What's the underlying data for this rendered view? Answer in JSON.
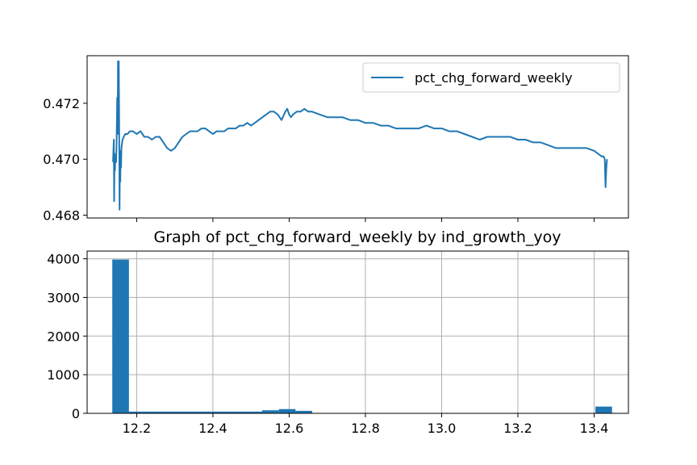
{
  "colors": {
    "series": "#1f77b4",
    "grid": "#b0b0b0",
    "axis": "#000000",
    "legend_border": "#cccccc",
    "background": "#ffffff"
  },
  "chart_data": [
    {
      "type": "line",
      "title": "",
      "xlabel": "",
      "ylabel": "",
      "legend": {
        "placement": "upper-right",
        "entries": [
          "pct_chg_forward_weekly"
        ]
      },
      "grid": false,
      "ylim": [
        0.4679,
        0.4737
      ],
      "xlim": [
        12.07,
        13.49
      ],
      "x_tick_values": [
        12.2,
        12.4,
        12.6,
        12.8,
        13.0,
        13.2,
        13.4
      ],
      "x_tick_labels": [
        "",
        "",
        "",
        "",
        "",
        "",
        ""
      ],
      "y_ticks": [
        0.468,
        0.47,
        0.472
      ],
      "y_tick_labels": [
        "0.468",
        "0.470",
        "0.472"
      ],
      "series": [
        {
          "name": "pct_chg_forward_weekly",
          "x": [
            12.138,
            12.14,
            12.141,
            12.142,
            12.143,
            12.144,
            12.146,
            12.147,
            12.149,
            12.15,
            12.151,
            12.152,
            12.153,
            12.154,
            12.155,
            12.156,
            12.157,
            12.158,
            12.159,
            12.16,
            12.163,
            12.166,
            12.17,
            12.176,
            12.182,
            12.19,
            12.2,
            12.21,
            12.22,
            12.23,
            12.24,
            12.25,
            12.26,
            12.27,
            12.28,
            12.29,
            12.3,
            12.31,
            12.32,
            12.33,
            12.34,
            12.35,
            12.36,
            12.37,
            12.38,
            12.39,
            12.4,
            12.41,
            12.42,
            12.43,
            12.44,
            12.45,
            12.46,
            12.47,
            12.48,
            12.49,
            12.5,
            12.51,
            12.52,
            12.53,
            12.54,
            12.55,
            12.56,
            12.57,
            12.58,
            12.59,
            12.595,
            12.6,
            12.605,
            12.61,
            12.62,
            12.63,
            12.64,
            12.65,
            12.66,
            12.68,
            12.7,
            12.72,
            12.74,
            12.76,
            12.78,
            12.8,
            12.82,
            12.84,
            12.86,
            12.88,
            12.9,
            12.92,
            12.94,
            12.96,
            12.98,
            13.0,
            13.02,
            13.04,
            13.06,
            13.08,
            13.1,
            13.12,
            13.14,
            13.16,
            13.18,
            13.2,
            13.22,
            13.24,
            13.26,
            13.28,
            13.3,
            13.32,
            13.34,
            13.36,
            13.38,
            13.4,
            13.41,
            13.42,
            13.425,
            13.428,
            13.43,
            13.432,
            13.434
          ],
          "values": [
            0.4699,
            0.4707,
            0.4685,
            0.4702,
            0.4696,
            0.4701,
            0.4699,
            0.4704,
            0.4722,
            0.4709,
            0.4735,
            0.4728,
            0.4735,
            0.4714,
            0.4682,
            0.4698,
            0.4692,
            0.4703,
            0.4697,
            0.4704,
            0.4707,
            0.4708,
            0.4709,
            0.4709,
            0.471,
            0.471,
            0.4709,
            0.471,
            0.4708,
            0.4708,
            0.4707,
            0.4708,
            0.4708,
            0.4706,
            0.4704,
            0.4703,
            0.4704,
            0.4706,
            0.4708,
            0.4709,
            0.471,
            0.471,
            0.471,
            0.4711,
            0.4711,
            0.471,
            0.4709,
            0.471,
            0.471,
            0.471,
            0.4711,
            0.4711,
            0.4711,
            0.4712,
            0.4712,
            0.4713,
            0.4712,
            0.4713,
            0.4714,
            0.4715,
            0.4716,
            0.4717,
            0.4717,
            0.4716,
            0.4714,
            0.4717,
            0.4718,
            0.4716,
            0.4715,
            0.4716,
            0.4717,
            0.4717,
            0.4718,
            0.4717,
            0.4717,
            0.4716,
            0.4715,
            0.4715,
            0.4715,
            0.4714,
            0.4714,
            0.4713,
            0.4713,
            0.4712,
            0.4712,
            0.4711,
            0.4711,
            0.4711,
            0.4711,
            0.4712,
            0.4711,
            0.4711,
            0.471,
            0.471,
            0.4709,
            0.4708,
            0.4707,
            0.4708,
            0.4708,
            0.4708,
            0.4708,
            0.4707,
            0.4707,
            0.4706,
            0.4706,
            0.4705,
            0.4704,
            0.4704,
            0.4704,
            0.4704,
            0.4704,
            0.4703,
            0.4702,
            0.4701,
            0.4701,
            0.47,
            0.469,
            0.4697,
            0.47
          ]
        }
      ]
    },
    {
      "type": "bar",
      "title": "Graph of pct_chg_forward_weekly by ind_growth_yoy",
      "xlabel": "",
      "ylabel": "",
      "grid": true,
      "xlim": [
        12.07,
        13.49
      ],
      "ylim": [
        0,
        4200
      ],
      "x_tick_values": [
        12.2,
        12.4,
        12.6,
        12.8,
        13.0,
        13.2,
        13.4
      ],
      "x_tick_labels": [
        "12.2",
        "12.4",
        "12.6",
        "12.8",
        "13.0",
        "13.2",
        "13.4"
      ],
      "y_ticks": [
        0,
        1000,
        2000,
        3000,
        4000
      ],
      "y_tick_labels": [
        "0",
        "1000",
        "2000",
        "3000",
        "4000"
      ],
      "bin_edges": [
        12.136,
        12.1797,
        12.2234,
        12.2671,
        12.3108,
        12.3545,
        12.3982,
        12.4419,
        12.4856,
        12.5293,
        12.573,
        12.6167,
        12.6604,
        12.7041,
        12.7478,
        12.7915,
        12.8352,
        12.8789,
        12.9226,
        12.9663,
        13.01,
        13.0537,
        13.0974,
        13.1411,
        13.1848,
        13.2285,
        13.2722,
        13.3159,
        13.3596,
        13.4033,
        13.447
      ],
      "values": [
        3980,
        45,
        45,
        45,
        45,
        45,
        45,
        45,
        45,
        80,
        110,
        65,
        0,
        0,
        0,
        0,
        0,
        0,
        0,
        0,
        0,
        0,
        0,
        0,
        0,
        0,
        0,
        0,
        0,
        175
      ]
    }
  ]
}
